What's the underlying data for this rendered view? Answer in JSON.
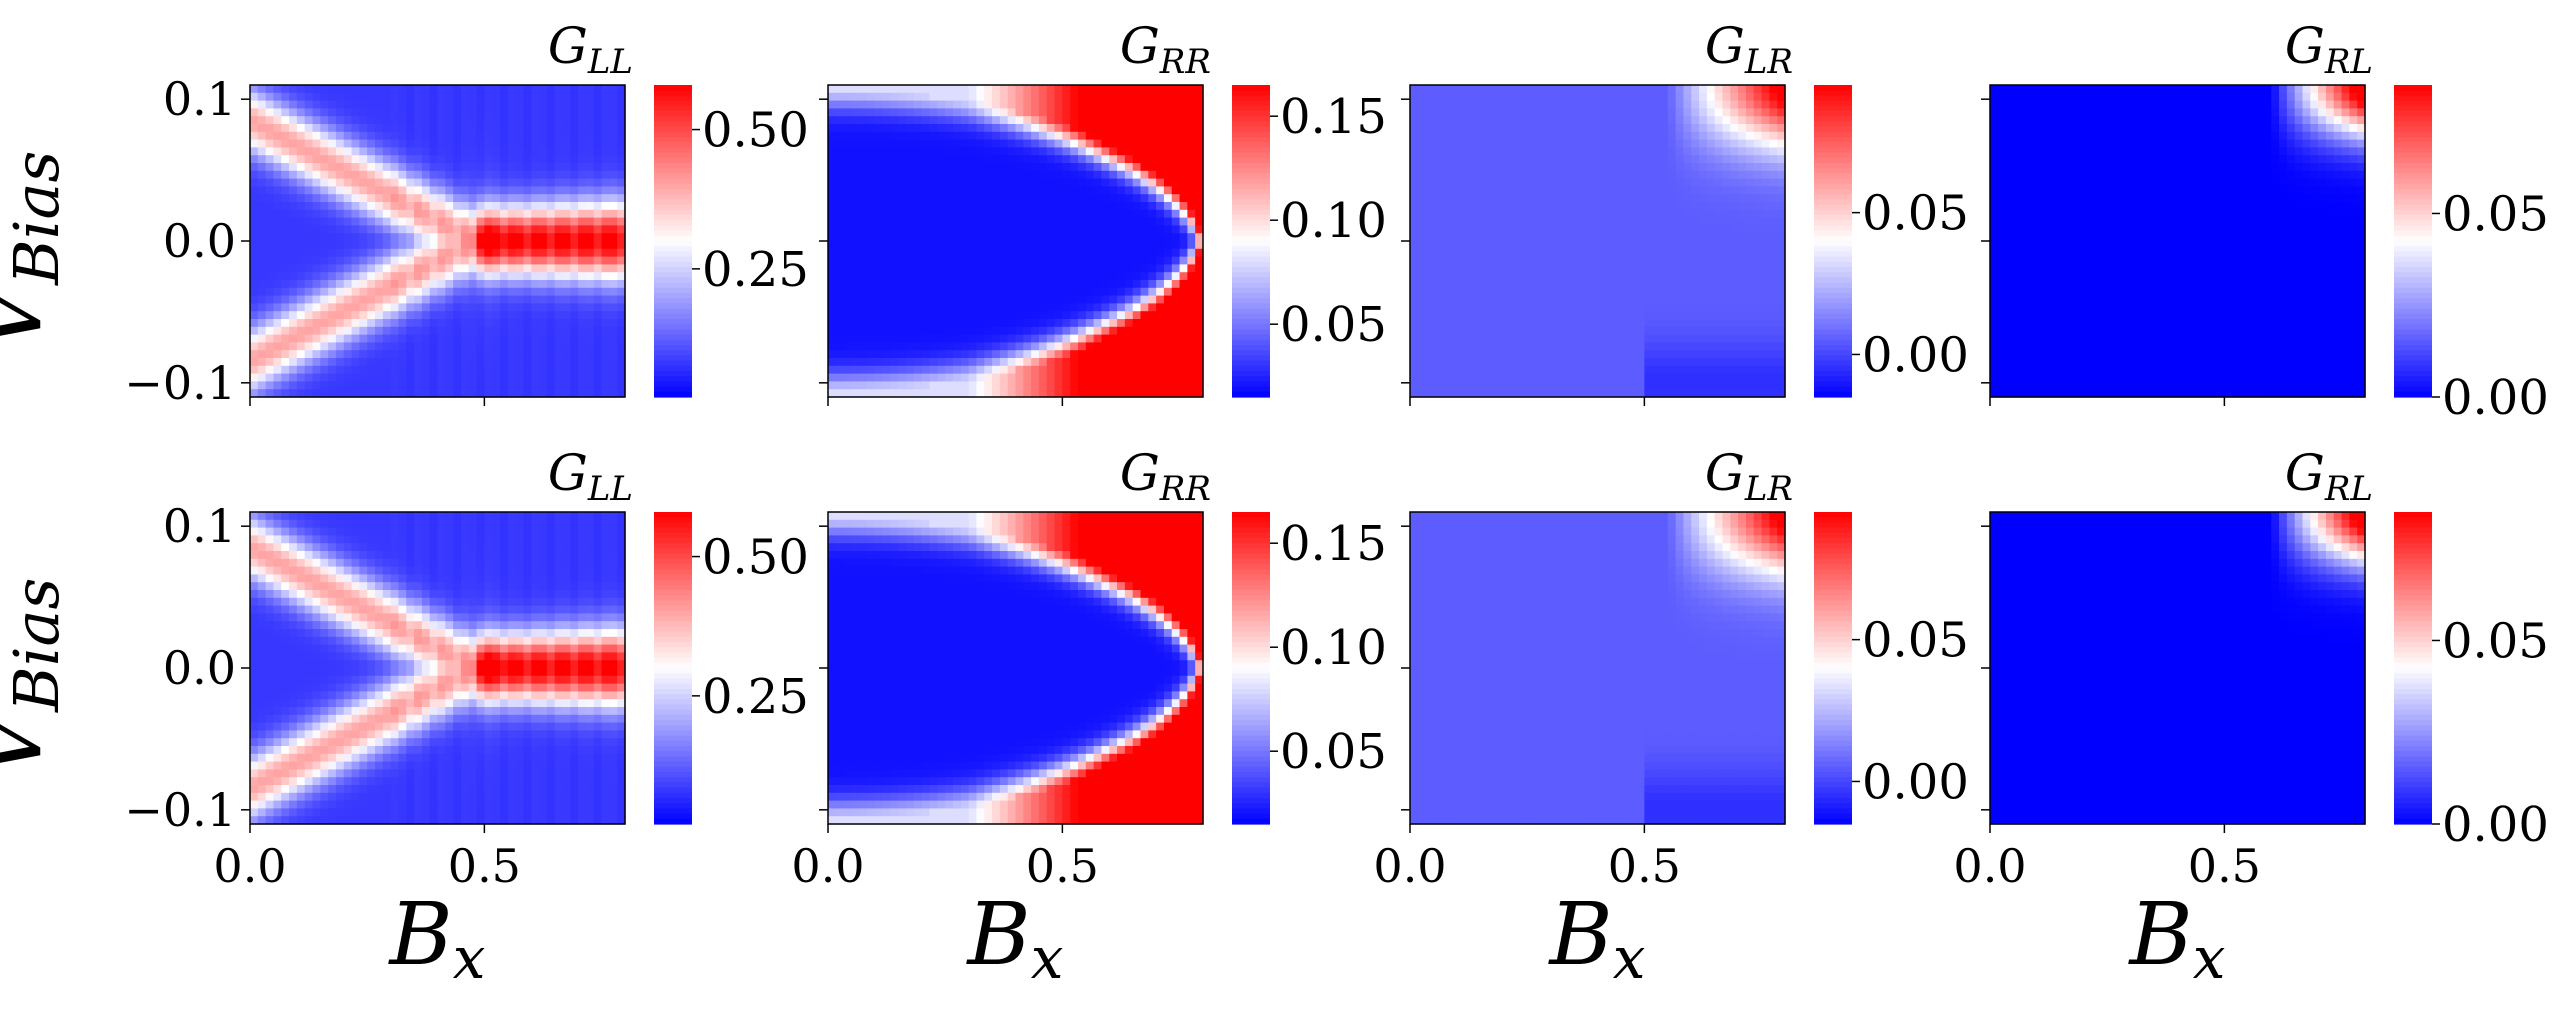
{
  "figure": {
    "rows": 2,
    "cols": 4,
    "colormap": "bwr",
    "colormap_colors": {
      "low": "#0000ff",
      "mid": "#ffffff",
      "high": "#ff0000"
    }
  },
  "chart_data": [
    {
      "type": "heatmap",
      "row": 1,
      "col": 1,
      "title_main": "G",
      "title_sub": "LL",
      "ylabel_main": "V",
      "ylabel_sub": "Bias",
      "xlim": [
        0,
        0.8
      ],
      "ylim": [
        -0.11,
        0.11
      ],
      "x_ticks": [
        0.0,
        0.5
      ],
      "x_tick_labels": [],
      "y_ticks": [
        -0.1,
        0.0,
        0.1
      ],
      "y_tick_labels": [
        "−0.1",
        "0.0",
        "0.1"
      ],
      "colorbar": {
        "vmin": 0.02,
        "vmax": 0.58,
        "ticks": [
          0.25,
          0.5
        ],
        "tick_labels": [
          "0.25",
          "0.50"
        ]
      },
      "pattern": "X-shaped crossing bands: two bright branches from V≈±0.085 at B=0 converging to zero near B≈0.47, then a zero-bias peak (~0.58) for B>0.55"
    },
    {
      "type": "heatmap",
      "row": 1,
      "col": 2,
      "title_main": "G",
      "title_sub": "RR",
      "xlim": [
        0,
        0.8
      ],
      "ylim": [
        -0.11,
        0.11
      ],
      "x_ticks": [
        0.0,
        0.5
      ],
      "x_tick_labels": [],
      "y_ticks": [
        -0.1,
        0.0,
        0.1
      ],
      "y_tick_labels": [],
      "colorbar": {
        "vmin": 0.015,
        "vmax": 0.165,
        "ticks": [
          0.05,
          0.1,
          0.15
        ],
        "tick_labels": [
          "0.05",
          "0.10",
          "0.15"
        ]
      },
      "pattern": "Gap edge |V| ≈ 0.11·sqrt(1−(B/0.8)^2) with strong red tips at high B"
    },
    {
      "type": "heatmap",
      "row": 1,
      "col": 3,
      "title_main": "G",
      "title_sub": "LR",
      "xlim": [
        0,
        0.8
      ],
      "ylim": [
        -0.11,
        0.11
      ],
      "x_ticks": [
        0.0,
        0.5
      ],
      "x_tick_labels": [],
      "y_ticks": [
        -0.1,
        0.0,
        0.1
      ],
      "y_tick_labels": [],
      "colorbar": {
        "vmin": -0.015,
        "vmax": 0.095,
        "ticks": [
          0.0,
          0.05
        ],
        "tick_labels": [
          "0.00",
          "0.05"
        ]
      },
      "pattern": "Mostly near zero; red only at high B and high positive bias"
    },
    {
      "type": "heatmap",
      "row": 1,
      "col": 4,
      "title_main": "G",
      "title_sub": "RL",
      "xlim": [
        0,
        0.8
      ],
      "ylim": [
        -0.11,
        0.11
      ],
      "x_ticks": [
        0.0,
        0.5
      ],
      "x_tick_labels": [],
      "y_ticks": [
        -0.1,
        0.0,
        0.1
      ],
      "y_tick_labels": [],
      "colorbar": {
        "vmin": 0.0,
        "vmax": 0.085,
        "ticks": [
          0.0,
          0.05
        ],
        "tick_labels": [
          "0.00",
          "0.05"
        ]
      },
      "pattern": "Zero almost everywhere; red only in top-right corner"
    },
    {
      "type": "heatmap",
      "row": 2,
      "col": 1,
      "title_main": "G",
      "title_sub": "LL",
      "ylabel_main": "V",
      "ylabel_sub": "Bias",
      "xlabel_main": "B",
      "xlabel_sub": "x",
      "xlim": [
        0,
        0.8
      ],
      "ylim": [
        -0.11,
        0.11
      ],
      "x_ticks": [
        0.0,
        0.5
      ],
      "x_tick_labels": [
        "0.0",
        "0.5"
      ],
      "y_ticks": [
        -0.1,
        0.0,
        0.1
      ],
      "y_tick_labels": [
        "−0.1",
        "0.0",
        "0.1"
      ],
      "colorbar": {
        "vmin": 0.02,
        "vmax": 0.58,
        "ticks": [
          0.25,
          0.5
        ],
        "tick_labels": [
          "0.25",
          "0.50"
        ]
      },
      "pattern": "Same as row 1 col 1"
    },
    {
      "type": "heatmap",
      "row": 2,
      "col": 2,
      "title_main": "G",
      "title_sub": "RR",
      "xlabel_main": "B",
      "xlabel_sub": "x",
      "xlim": [
        0,
        0.8
      ],
      "ylim": [
        -0.11,
        0.11
      ],
      "x_ticks": [
        0.0,
        0.5
      ],
      "x_tick_labels": [
        "0.0",
        "0.5"
      ],
      "y_ticks": [
        -0.1,
        0.0,
        0.1
      ],
      "y_tick_labels": [],
      "colorbar": {
        "vmin": 0.015,
        "vmax": 0.165,
        "ticks": [
          0.05,
          0.1,
          0.15
        ],
        "tick_labels": [
          "0.05",
          "0.10",
          "0.15"
        ]
      },
      "pattern": "Same as row 1 col 2"
    },
    {
      "type": "heatmap",
      "row": 2,
      "col": 3,
      "title_main": "G",
      "title_sub": "LR",
      "xlabel_main": "B",
      "xlabel_sub": "x",
      "xlim": [
        0,
        0.8
      ],
      "ylim": [
        -0.11,
        0.11
      ],
      "x_ticks": [
        0.0,
        0.5
      ],
      "x_tick_labels": [
        "0.0",
        "0.5"
      ],
      "y_ticks": [
        -0.1,
        0.0,
        0.1
      ],
      "y_tick_labels": [],
      "colorbar": {
        "vmin": -0.015,
        "vmax": 0.095,
        "ticks": [
          0.0,
          0.05
        ],
        "tick_labels": [
          "0.00",
          "0.05"
        ]
      },
      "pattern": "Same as row 1 col 3"
    },
    {
      "type": "heatmap",
      "row": 2,
      "col": 4,
      "title_main": "G",
      "title_sub": "RL",
      "xlabel_main": "B",
      "xlabel_sub": "x",
      "xlim": [
        0,
        0.8
      ],
      "ylim": [
        -0.11,
        0.11
      ],
      "x_ticks": [
        0.0,
        0.5
      ],
      "x_tick_labels": [
        "0.0",
        "0.5"
      ],
      "y_ticks": [
        -0.1,
        0.0,
        0.1
      ],
      "y_tick_labels": [],
      "colorbar": {
        "vmin": 0.0,
        "vmax": 0.085,
        "ticks": [
          0.0,
          0.05
        ],
        "tick_labels": [
          "0.00",
          "0.05"
        ]
      },
      "pattern": "Same as row 1 col 4"
    }
  ]
}
